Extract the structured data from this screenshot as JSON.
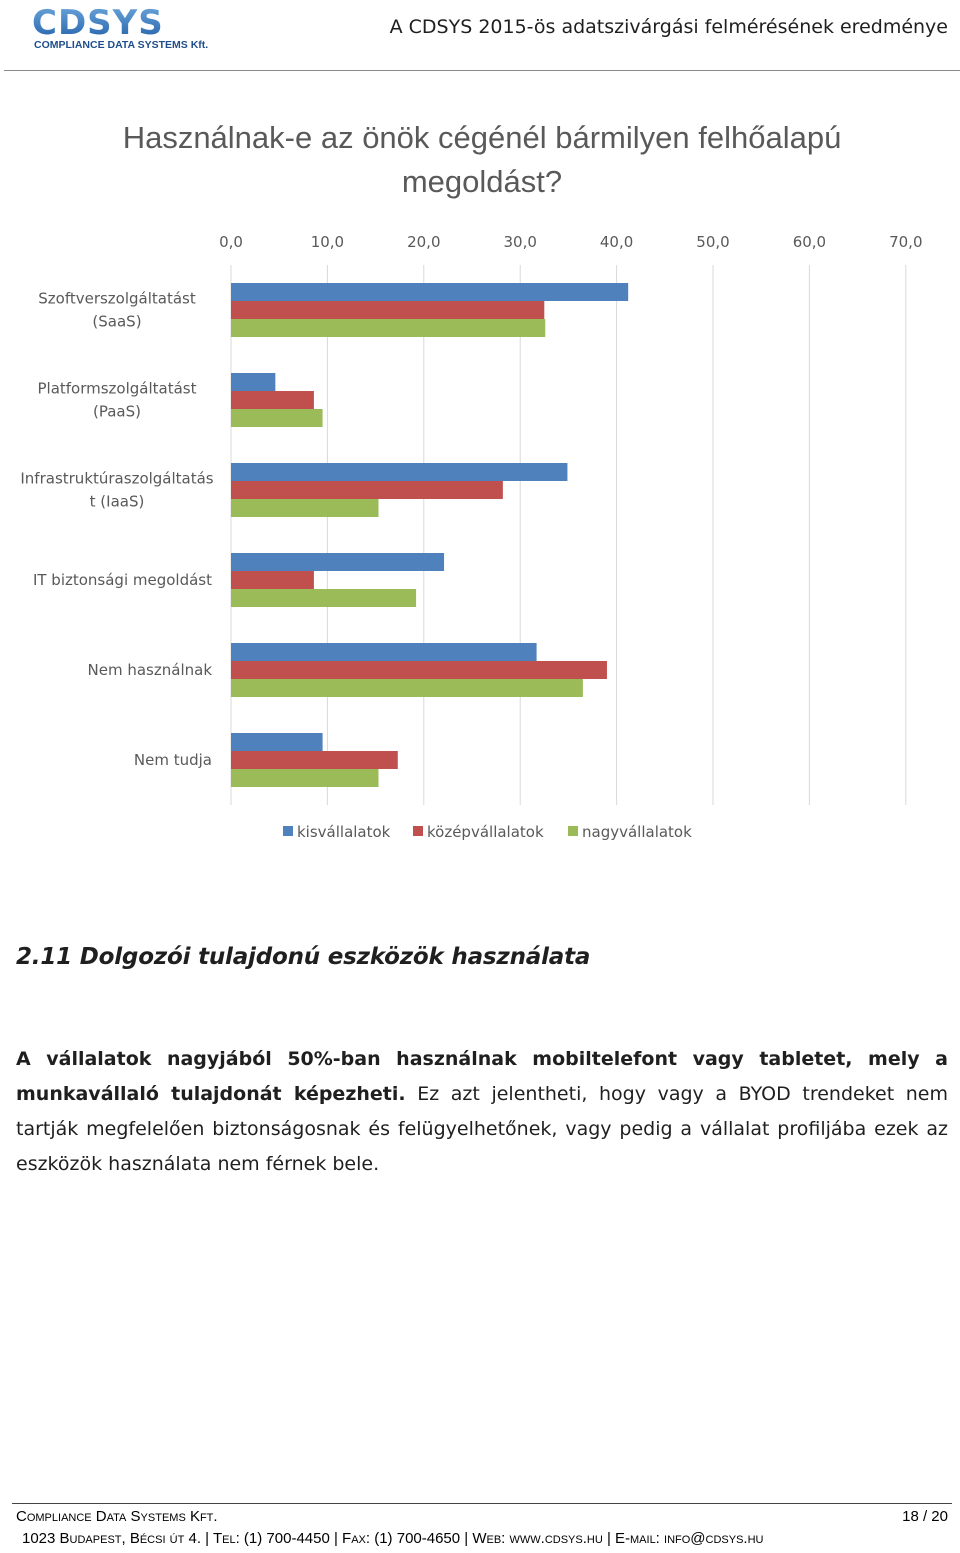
{
  "header": {
    "logo_text": "CDSYS",
    "logo_subtext": "COMPLIANCE DATA SYSTEMS Kft.",
    "title": "A CDSYS 2015-ös adatszivárgási felmérésének eredménye"
  },
  "chart_data": {
    "type": "bar",
    "orientation": "horizontal",
    "title_lines": [
      "Használnak-e az önök cégénél bármilyen felhőalapú",
      "megoldást?"
    ],
    "categories": [
      [
        "Szoftverszolgáltatást",
        "(SaaS)"
      ],
      [
        "Platformszolgáltatást",
        "(PaaS)"
      ],
      [
        "Infrastruktúraszolgáltatás",
        "t (IaaS)"
      ],
      [
        "IT biztonsági megoldást"
      ],
      [
        "Nem használnak"
      ],
      [
        "Nem tudja"
      ]
    ],
    "series": [
      {
        "name": "kisvállalatok",
        "color": "#4f81bd",
        "values": [
          41.2,
          4.6,
          34.9,
          22.1,
          31.7,
          9.5
        ]
      },
      {
        "name": "középvállalatok",
        "color": "#c0504d",
        "values": [
          32.5,
          8.6,
          28.2,
          8.6,
          39.0,
          17.3
        ]
      },
      {
        "name": "nagyvállalatok",
        "color": "#9bbb59",
        "values": [
          32.6,
          9.5,
          15.3,
          19.2,
          36.5,
          15.3
        ]
      }
    ],
    "xlim": [
      0,
      70
    ],
    "xticks": [
      "0,0",
      "10,0",
      "20,0",
      "30,0",
      "40,0",
      "50,0",
      "60,0",
      "70,0"
    ],
    "axis_position": "top",
    "grid": true,
    "legend_position": "bottom"
  },
  "section": {
    "heading": "2.11 Dolgozói tulajdonú eszközök használata",
    "para_bold": "A vállalatok nagyjából 50%-ban használnak mobiltelefont vagy tabletet, mely a munkavállaló tulajdonát képezheti.",
    "para_rest": " Ez azt jelentheti, hogy vagy a BYOD trendeket nem tartják megfelelően biztonságosnak és felügyelhetőnek, vagy pedig a vállalat profiljába ezek az eszközök használata nem férnek bele."
  },
  "footer": {
    "company": "Compliance Data Systems Kft.",
    "page": "18 / 20",
    "contact": "1023 Budapest, Bécsi út 4. | Tel: (1) 700-4450 | Fax: (1) 700-4650 | Web: www.cdsys.hu | E-mail: info@cdsys.hu"
  }
}
